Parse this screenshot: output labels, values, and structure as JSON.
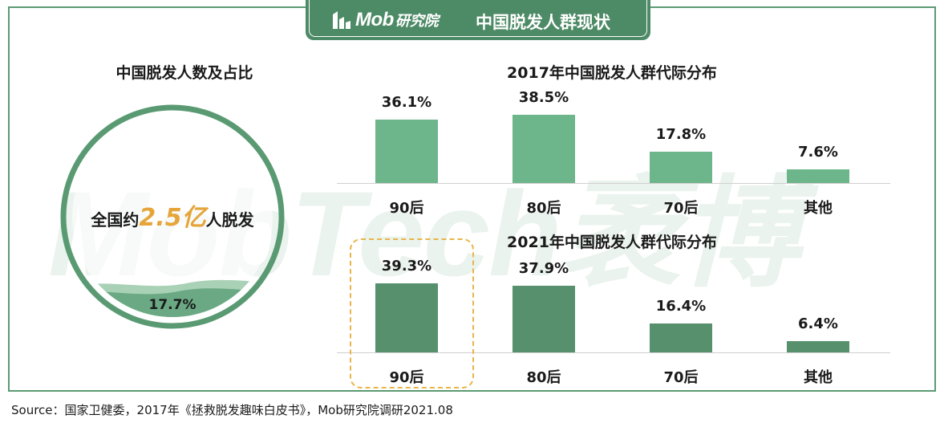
{
  "banner": {
    "brand": "Mob",
    "brand_cn": "研究院",
    "title": "中国脱发人群现状"
  },
  "watermark": "MobTech袤博",
  "left": {
    "title": "中国脱发人数及占比",
    "center_prefix": "全国约",
    "center_number": "2.5",
    "center_unit": "亿",
    "center_suffix": "人脱发",
    "share_label": "17.7%",
    "share_value": 17.7
  },
  "colors": {
    "bar_2017": "#6db58a",
    "bar_2021": "#57906c",
    "accent": "#e5a53a",
    "frame": "#5a9a73"
  },
  "chart_data": [
    {
      "type": "bar",
      "title": "2017年中国脱发人群代际分布",
      "categories": [
        "90后",
        "80后",
        "70后",
        "其他"
      ],
      "values": [
        36.1,
        38.5,
        17.8,
        7.6
      ],
      "labels": [
        "36.1%",
        "38.5%",
        "17.8%",
        "7.6%"
      ],
      "unit": "%"
    },
    {
      "type": "bar",
      "title": "2021年中国脱发人群代际分布",
      "categories": [
        "90后",
        "80后",
        "70后",
        "其他"
      ],
      "values": [
        39.3,
        37.9,
        16.4,
        6.4
      ],
      "labels": [
        "39.3%",
        "37.9%",
        "16.4%",
        "6.4%"
      ],
      "unit": "%",
      "highlighted_category": "90后"
    }
  ],
  "source": "Source：国家卫健委，2017年《拯救脱发趣味白皮书》，Mob研究院调研2021.08"
}
